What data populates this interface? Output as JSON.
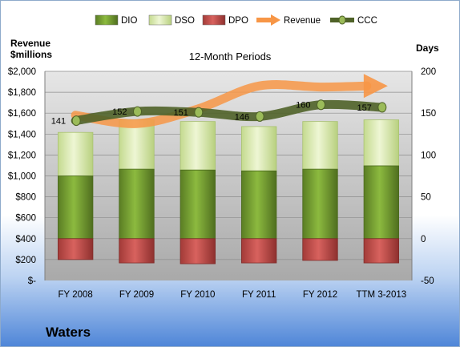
{
  "company": "Waters",
  "chart_data": {
    "type": "bar",
    "subtitle": "12-Month Periods",
    "y_left_title": [
      "Revenue",
      "$millions"
    ],
    "y_right_title": "Days",
    "categories": [
      "FY 2008",
      "FY 2009",
      "FY 2010",
      "FY 2011",
      "FY 2012",
      "TTM 3-2013"
    ],
    "left_axis": {
      "range": [
        0,
        2000
      ],
      "ticks": [
        0,
        200,
        400,
        600,
        800,
        1000,
        1200,
        1400,
        1600,
        1800,
        2000
      ],
      "tick_labels": [
        "$-",
        "$200",
        "$400",
        "$600",
        "$800",
        "$1,000",
        "$1,200",
        "$1,400",
        "$1,600",
        "$1,800",
        "$2,000"
      ]
    },
    "right_axis": {
      "range": [
        -50,
        200
      ],
      "ticks": [
        -50,
        0,
        50,
        100,
        150,
        200
      ],
      "tick_labels": [
        "-50",
        "0",
        "50",
        "100",
        "150",
        "200"
      ]
    },
    "legend": [
      "DIO",
      "DSO",
      "DPO",
      "Revenue",
      "CCC"
    ],
    "series": [
      {
        "name": "DIO",
        "kind": "stacked-bar",
        "axis": "right",
        "values": [
          75,
          83,
          82,
          81,
          83,
          87
        ]
      },
      {
        "name": "DSO",
        "kind": "stacked-bar",
        "axis": "right",
        "values": [
          52,
          59,
          58,
          53,
          57,
          55
        ]
      },
      {
        "name": "DPO",
        "kind": "negative-bar",
        "axis": "right",
        "values": [
          -25,
          -29,
          -30,
          -29,
          -26,
          -29
        ]
      },
      {
        "name": "Revenue",
        "kind": "arrow-line",
        "axis": "left",
        "values": [
          1580,
          1500,
          1640,
          1860,
          1850,
          1860
        ]
      },
      {
        "name": "CCC",
        "kind": "line",
        "axis": "right",
        "values": [
          141,
          152,
          151,
          146,
          160,
          157
        ],
        "labels": [
          "141",
          "152",
          "151",
          "146",
          "160",
          "157"
        ]
      }
    ],
    "colors": {
      "DIO": "#77a033",
      "DSO": "#d6e8a8",
      "DPO": "#c0504d",
      "Revenue": "#f79646",
      "CCC": "#4f6228"
    },
    "grid": true,
    "legend_position": "top"
  }
}
